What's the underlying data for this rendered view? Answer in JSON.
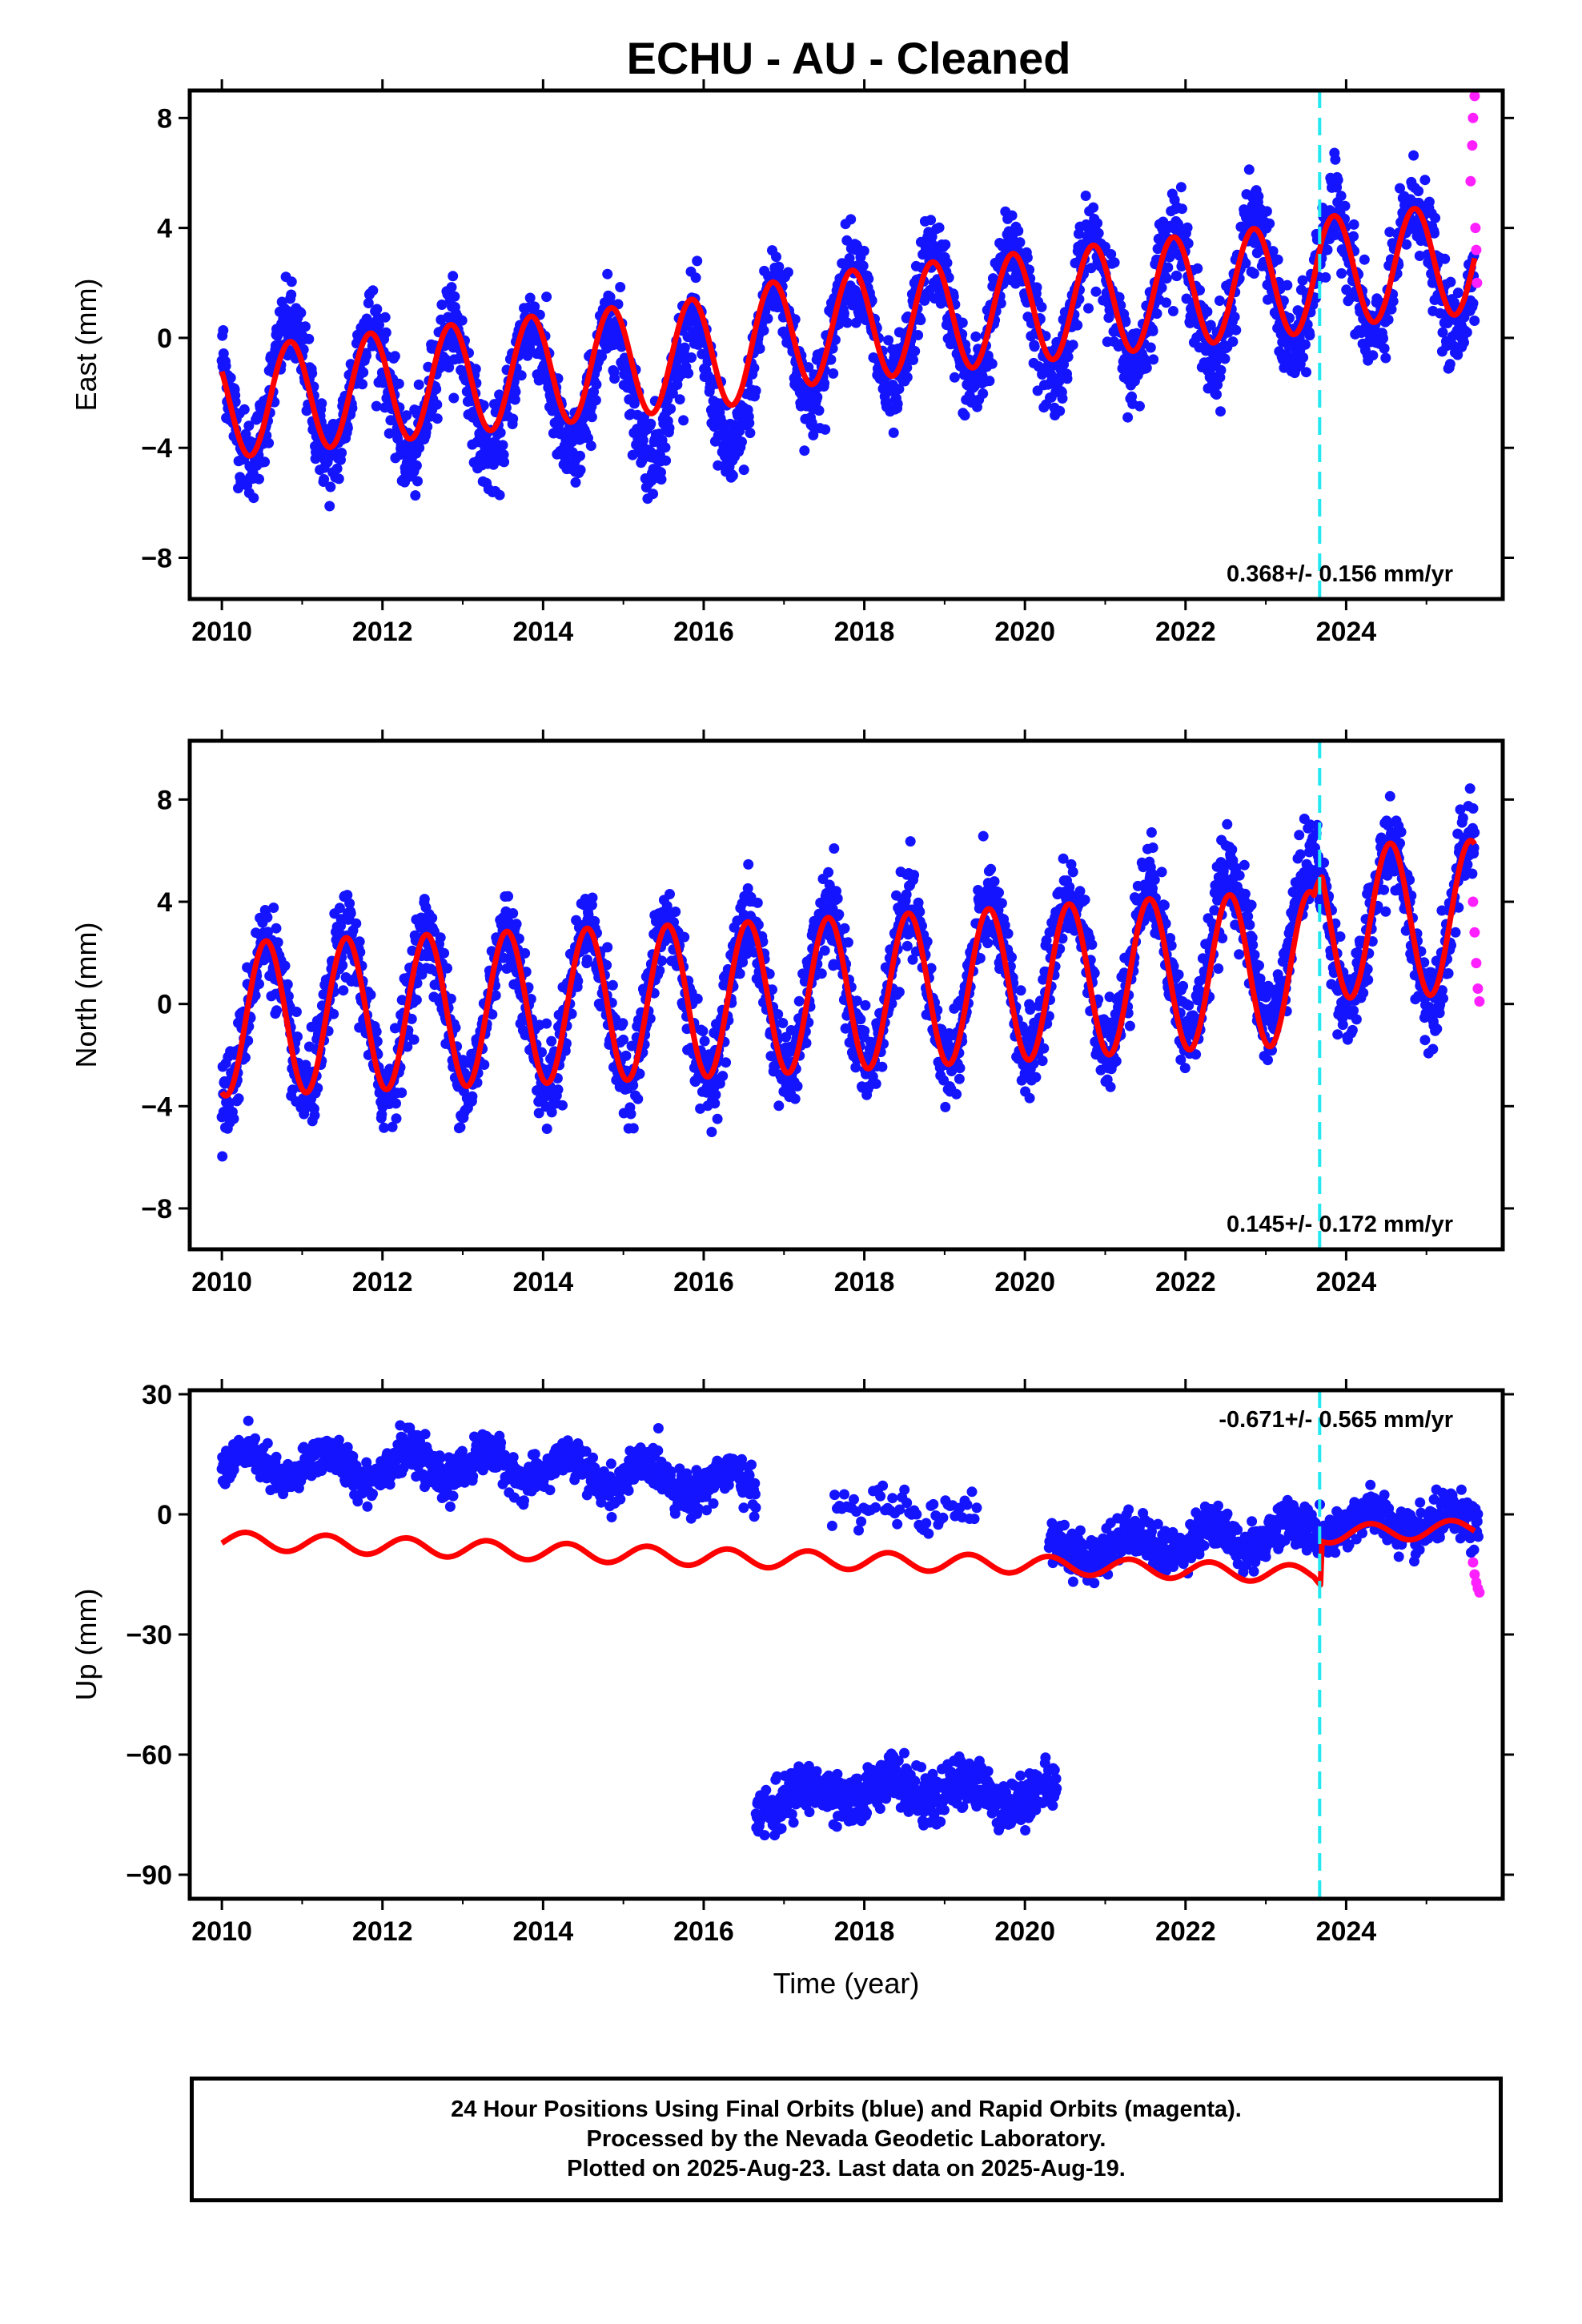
{
  "title": "ECHU  - AU - Cleaned",
  "colors": {
    "final_orbits": "#1414ff",
    "rapid_orbits": "#ff20ff",
    "model": "#ff0000",
    "event_line": "#22e8f0"
  },
  "footer": {
    "line1": "24 Hour Positions Using Final Orbits (blue) and Rapid Orbits (magenta).",
    "line2": "Processed by the Nevada Geodetic Laboratory.",
    "line3": "Plotted on 2025-Aug-23. Last data on 2025-Aug-19."
  },
  "chart_data": [
    {
      "type": "scatter",
      "ylabel": "East (mm)",
      "xlabel": "",
      "xlim": [
        2009.6,
        2025.95
      ],
      "ylim": [
        -9.5,
        9.0
      ],
      "xticks": [
        2010,
        2012,
        2014,
        2016,
        2018,
        2020,
        2022,
        2024
      ],
      "yticks": [
        -8,
        -4,
        0,
        4,
        8
      ],
      "rate_text": "0.368+/- 0.156 mm/yr",
      "rate_position": "bottom-right",
      "event_line_x": 2023.67,
      "grid": false,
      "series": [
        {
          "role": "final_orbits",
          "trend": [
            [
              2010.0,
              -2.0
            ],
            [
              2016.5,
              -1.8
            ],
            [
              2017.0,
              0.0
            ],
            [
              2023.6,
              2.0
            ],
            [
              2023.7,
              2.2
            ],
            [
              2025.6,
              2.7
            ]
          ],
          "annual_amplitude": 2.4,
          "annual_phase_peak": 0.85,
          "noise": 1.4
        },
        {
          "role": "rapid_orbits",
          "points": [
            [
              2025.55,
              5.7
            ],
            [
              2025.57,
              7.0
            ],
            [
              2025.58,
              8.0
            ],
            [
              2025.6,
              8.8
            ],
            [
              2025.61,
              4.0
            ],
            [
              2025.62,
              3.2
            ],
            [
              2025.63,
              2.0
            ]
          ]
        },
        {
          "role": "model",
          "trend": [
            [
              2010.0,
              -2.4
            ],
            [
              2016.5,
              -0.4
            ],
            [
              2017.0,
              0.2
            ],
            [
              2023.6,
              2.2
            ],
            [
              2023.7,
              2.4
            ],
            [
              2025.6,
              2.9
            ]
          ],
          "annual_amplitude": 2.0,
          "annual_phase_peak": 0.85
        }
      ]
    },
    {
      "type": "scatter",
      "ylabel": "North (mm)",
      "xlabel": "",
      "xlim": [
        2009.6,
        2025.95
      ],
      "ylim": [
        -9.6,
        10.3
      ],
      "xticks": [
        2010,
        2012,
        2014,
        2016,
        2018,
        2020,
        2022,
        2024
      ],
      "yticks": [
        -8,
        -4,
        0,
        4,
        8
      ],
      "rate_text": "0.145+/- 0.172 mm/yr",
      "rate_position": "bottom-right",
      "event_line_x": 2023.67,
      "grid": false,
      "series": [
        {
          "role": "final_orbits",
          "trend": [
            [
              2010.0,
              -0.6
            ],
            [
              2016.5,
              0.2
            ],
            [
              2020.0,
              1.0
            ],
            [
              2022.0,
              1.8
            ],
            [
              2023.6,
              2.6
            ],
            [
              2023.7,
              3.0
            ],
            [
              2025.6,
              3.4
            ]
          ],
          "annual_amplitude": 3.0,
          "annual_phase_peak": 0.55,
          "noise": 1.5
        },
        {
          "role": "rapid_orbits",
          "points": [
            [
              2025.58,
              4.0
            ],
            [
              2025.6,
              2.8
            ],
            [
              2025.62,
              1.6
            ],
            [
              2025.64,
              0.6
            ],
            [
              2025.66,
              0.1
            ]
          ]
        },
        {
          "role": "model",
          "trend": [
            [
              2010.0,
              -0.6
            ],
            [
              2016.5,
              0.2
            ],
            [
              2020.0,
              0.8
            ],
            [
              2022.0,
              1.2
            ],
            [
              2023.6,
              1.4
            ],
            [
              2023.7,
              3.2
            ],
            [
              2025.6,
              3.4
            ]
          ],
          "annual_amplitude": 3.0,
          "annual_phase_peak": 0.55
        }
      ]
    },
    {
      "type": "scatter",
      "ylabel": "Up (mm)",
      "xlabel": "Time (year)",
      "xlim": [
        2009.6,
        2025.95
      ],
      "ylim": [
        -96,
        31
      ],
      "xticks": [
        2010,
        2012,
        2014,
        2016,
        2018,
        2020,
        2022,
        2024
      ],
      "yticks": [
        -90,
        -60,
        -30,
        0,
        30
      ],
      "rate_text": "-0.671+/- 0.565 mm/yr",
      "rate_position": "top-right",
      "event_line_x": 2023.67,
      "grid": false,
      "series": [
        {
          "role": "final_orbits",
          "segments": [
            {
              "from": 2010.0,
              "to": 2016.65,
              "level": [
                [
                  2010.0,
                  12
                ],
                [
                  2013.5,
                  12
                ],
                [
                  2016.65,
                  7
                ]
              ],
              "annual_amplitude": 3.5,
              "noise": 4.0
            },
            {
              "from": 2016.65,
              "to": 2020.4,
              "level": [
                [
                  2016.65,
                  -72
                ],
                [
                  2018.5,
                  -68
                ],
                [
                  2020.4,
                  -71
                ]
              ],
              "annual_amplitude": 3.0,
              "noise": 5.0
            },
            {
              "from": 2017.6,
              "to": 2019.4,
              "level": [
                [
                  2017.6,
                  3
                ],
                [
                  2019.4,
                  0
                ]
              ],
              "annual_amplitude": 2.0,
              "noise": 4.0,
              "sparse": true
            },
            {
              "from": 2020.3,
              "to": 2025.65,
              "level": [
                [
                  2020.3,
                  -9
                ],
                [
                  2023.6,
                  -4
                ],
                [
                  2024.0,
                  -2
                ],
                [
                  2025.6,
                  -3
                ]
              ],
              "annual_amplitude": 3.0,
              "noise": 4.5
            }
          ]
        },
        {
          "role": "rapid_orbits",
          "points": [
            [
              2025.58,
              -12
            ],
            [
              2025.6,
              -15
            ],
            [
              2025.62,
              -17
            ],
            [
              2025.64,
              -18.5
            ],
            [
              2025.66,
              -19.5
            ]
          ]
        },
        {
          "role": "model",
          "trend": [
            [
              2010.0,
              -6.5
            ],
            [
              2016.5,
              -11
            ],
            [
              2020.0,
              -12.5
            ],
            [
              2023.6,
              -15
            ],
            [
              2023.68,
              -16
            ],
            [
              2023.7,
              -5
            ],
            [
              2025.6,
              -3.5
            ]
          ],
          "annual_amplitude": 2.2,
          "annual_phase_peak": 0.3
        }
      ]
    }
  ]
}
